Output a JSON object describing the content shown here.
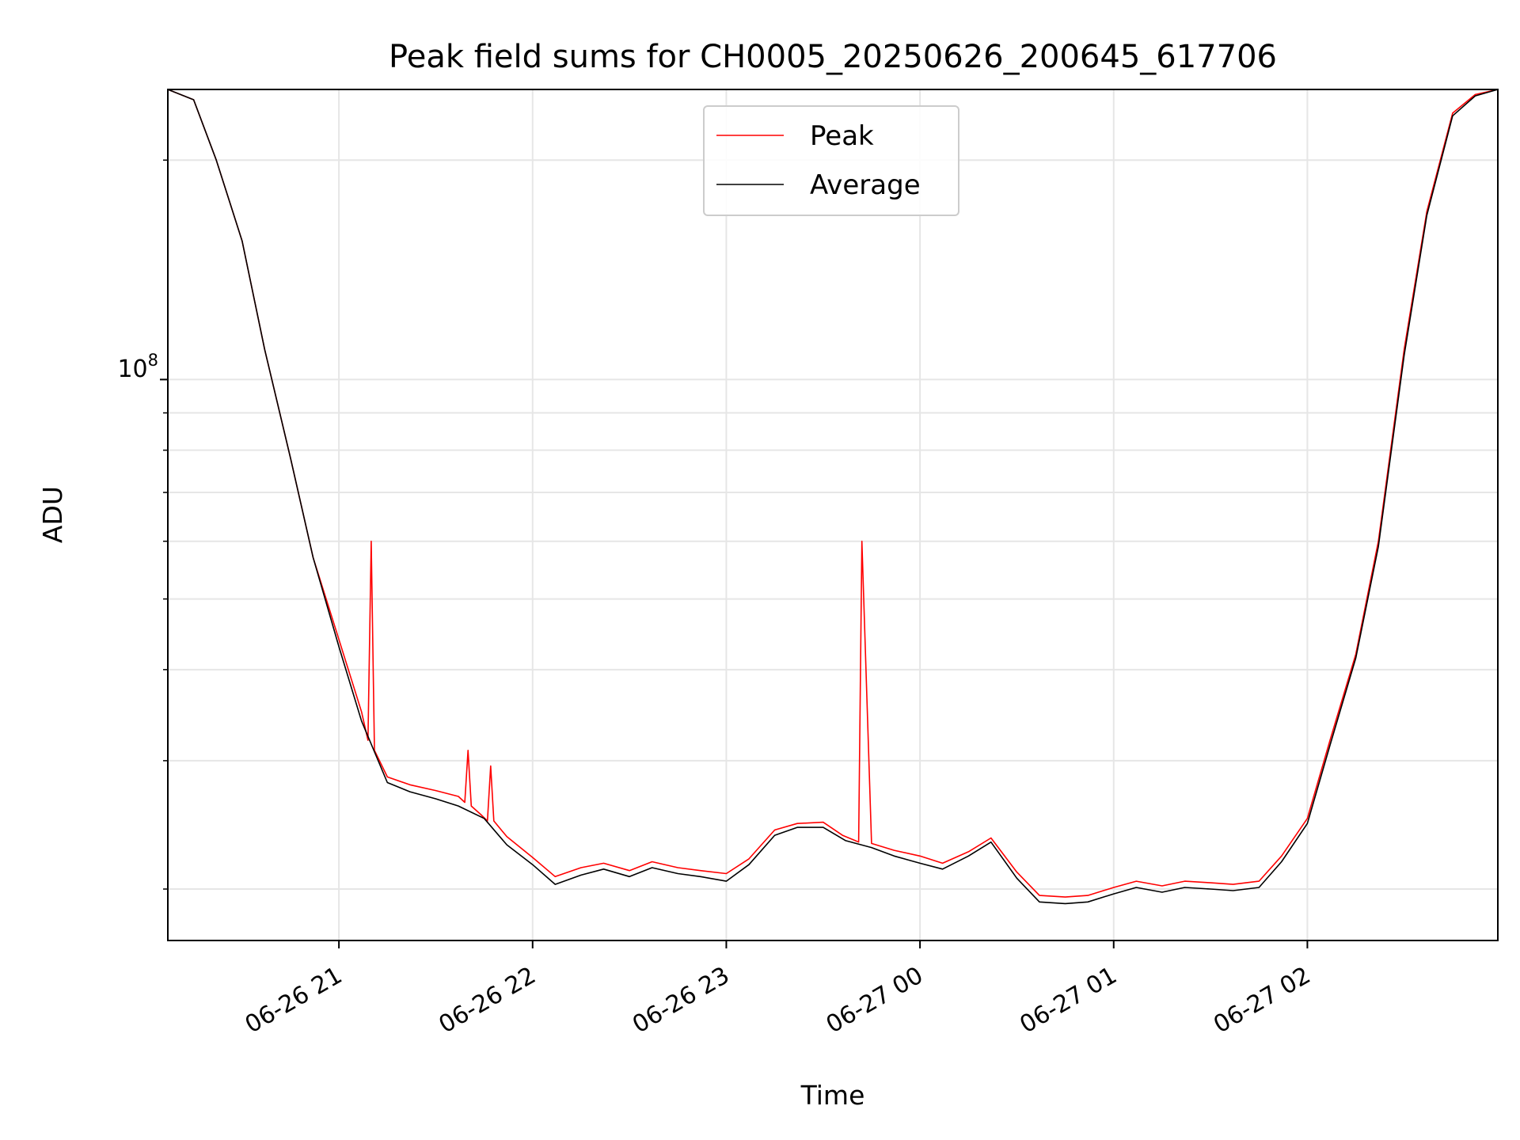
{
  "chart_data": {
    "type": "line",
    "title": "Peak field sums for CH0005_20250626_200645_617706",
    "xlabel": "Time",
    "ylabel": "ADU",
    "y_scale": "log",
    "y_tick_label_base": "10",
    "y_tick_label_exp": "8",
    "y_major_tick": 100000000,
    "y_minor_ticks": [
      20000000,
      30000000,
      40000000,
      50000000,
      60000000,
      70000000,
      80000000,
      90000000,
      200000000
    ],
    "ylim": [
      17000000,
      250000000
    ],
    "xlim": [
      "2025-06-26 20:07",
      "2025-06-27 02:59"
    ],
    "x_ticks": [
      "2025-06-26 21:00",
      "2025-06-26 22:00",
      "2025-06-26 23:00",
      "2025-06-27 00:00",
      "2025-06-27 01:00",
      "2025-06-27 02:00"
    ],
    "x_tick_labels": [
      "06-26 21",
      "06-26 22",
      "06-26 23",
      "06-27 00",
      "06-27 01",
      "06-27 02"
    ],
    "grid": true,
    "legend_position": "upper center",
    "series": [
      {
        "name": "Peak",
        "color": "#ff0000",
        "x": [
          "2025-06-26 20:07",
          "2025-06-26 20:15",
          "2025-06-26 20:22",
          "2025-06-26 20:30",
          "2025-06-26 20:37",
          "2025-06-26 20:45",
          "2025-06-26 20:52",
          "2025-06-26 21:00",
          "2025-06-26 21:07",
          "2025-06-26 21:09",
          "2025-06-26 21:10",
          "2025-06-26 21:11",
          "2025-06-26 21:15",
          "2025-06-26 21:22",
          "2025-06-26 21:30",
          "2025-06-26 21:37",
          "2025-06-26 21:39",
          "2025-06-26 21:40",
          "2025-06-26 21:41",
          "2025-06-26 21:44",
          "2025-06-26 21:46",
          "2025-06-26 21:47",
          "2025-06-26 21:48",
          "2025-06-26 21:52",
          "2025-06-26 22:00",
          "2025-06-26 22:07",
          "2025-06-26 22:15",
          "2025-06-26 22:22",
          "2025-06-26 22:30",
          "2025-06-26 22:37",
          "2025-06-26 22:45",
          "2025-06-26 22:52",
          "2025-06-26 23:00",
          "2025-06-26 23:07",
          "2025-06-26 23:15",
          "2025-06-26 23:22",
          "2025-06-26 23:30",
          "2025-06-26 23:36",
          "2025-06-26 23:40",
          "2025-06-26 23:41",
          "2025-06-26 23:42",
          "2025-06-26 23:45",
          "2025-06-26 23:52",
          "2025-06-27 00:00",
          "2025-06-27 00:07",
          "2025-06-27 00:15",
          "2025-06-27 00:22",
          "2025-06-27 00:30",
          "2025-06-27 00:37",
          "2025-06-27 00:45",
          "2025-06-27 00:52",
          "2025-06-27 01:00",
          "2025-06-27 01:07",
          "2025-06-27 01:15",
          "2025-06-27 01:22",
          "2025-06-27 01:30",
          "2025-06-27 01:37",
          "2025-06-27 01:45",
          "2025-06-27 01:52",
          "2025-06-27 02:00",
          "2025-06-27 02:07",
          "2025-06-27 02:15",
          "2025-06-27 02:22",
          "2025-06-27 02:30",
          "2025-06-27 02:37",
          "2025-06-27 02:45",
          "2025-06-27 02:52",
          "2025-06-27 02:59"
        ],
        "y": [
          250000000,
          242000000,
          200000000,
          155000000,
          110000000,
          78000000,
          57000000,
          44000000,
          35000000,
          32000000,
          60000000,
          31000000,
          28500000,
          27800000,
          27300000,
          26800000,
          26300000,
          31000000,
          26000000,
          25300000,
          24800000,
          29500000,
          24800000,
          23600000,
          22100000,
          20800000,
          21400000,
          21700000,
          21200000,
          21800000,
          21400000,
          21200000,
          21000000,
          22000000,
          24100000,
          24600000,
          24700000,
          23700000,
          23300000,
          23200000,
          60000000,
          23100000,
          22600000,
          22200000,
          21700000,
          22500000,
          23500000,
          21100000,
          19600000,
          19500000,
          19600000,
          20100000,
          20500000,
          20200000,
          20500000,
          20400000,
          20300000,
          20500000,
          22200000,
          25000000,
          32000000,
          42000000,
          60000000,
          110000000,
          170000000,
          232000000,
          246000000,
          250000000
        ]
      },
      {
        "name": "Average",
        "color": "#000000",
        "x": [
          "2025-06-26 20:07",
          "2025-06-26 20:15",
          "2025-06-26 20:22",
          "2025-06-26 20:30",
          "2025-06-26 20:37",
          "2025-06-26 20:45",
          "2025-06-26 20:52",
          "2025-06-26 21:00",
          "2025-06-26 21:07",
          "2025-06-26 21:15",
          "2025-06-26 21:22",
          "2025-06-26 21:30",
          "2025-06-26 21:37",
          "2025-06-26 21:45",
          "2025-06-26 21:52",
          "2025-06-26 22:00",
          "2025-06-26 22:07",
          "2025-06-26 22:15",
          "2025-06-26 22:22",
          "2025-06-26 22:30",
          "2025-06-26 22:37",
          "2025-06-26 22:45",
          "2025-06-26 22:52",
          "2025-06-26 23:00",
          "2025-06-26 23:07",
          "2025-06-26 23:15",
          "2025-06-26 23:22",
          "2025-06-26 23:30",
          "2025-06-26 23:37",
          "2025-06-26 23:45",
          "2025-06-26 23:52",
          "2025-06-27 00:00",
          "2025-06-27 00:07",
          "2025-06-27 00:15",
          "2025-06-27 00:22",
          "2025-06-27 00:30",
          "2025-06-27 00:37",
          "2025-06-27 00:45",
          "2025-06-27 00:52",
          "2025-06-27 01:00",
          "2025-06-27 01:07",
          "2025-06-27 01:15",
          "2025-06-27 01:22",
          "2025-06-27 01:30",
          "2025-06-27 01:37",
          "2025-06-27 01:45",
          "2025-06-27 01:52",
          "2025-06-27 02:00",
          "2025-06-27 02:07",
          "2025-06-27 02:15",
          "2025-06-27 02:22",
          "2025-06-27 02:30",
          "2025-06-27 02:37",
          "2025-06-27 02:45",
          "2025-06-27 02:52",
          "2025-06-27 02:59"
        ],
        "y": [
          250000000,
          242000000,
          200000000,
          155000000,
          110000000,
          78000000,
          57000000,
          43000000,
          34000000,
          28000000,
          27200000,
          26600000,
          26000000,
          25000000,
          23000000,
          21600000,
          20300000,
          20900000,
          21300000,
          20800000,
          21400000,
          21000000,
          20800000,
          20500000,
          21600000,
          23700000,
          24300000,
          24300000,
          23300000,
          22800000,
          22200000,
          21700000,
          21300000,
          22200000,
          23200000,
          20700000,
          19200000,
          19100000,
          19200000,
          19700000,
          20100000,
          19800000,
          20100000,
          20000000,
          19900000,
          20100000,
          21800000,
          24600000,
          31500000,
          41500000,
          59000000,
          108000000,
          168000000,
          230000000,
          245000000,
          250000000
        ]
      }
    ]
  }
}
